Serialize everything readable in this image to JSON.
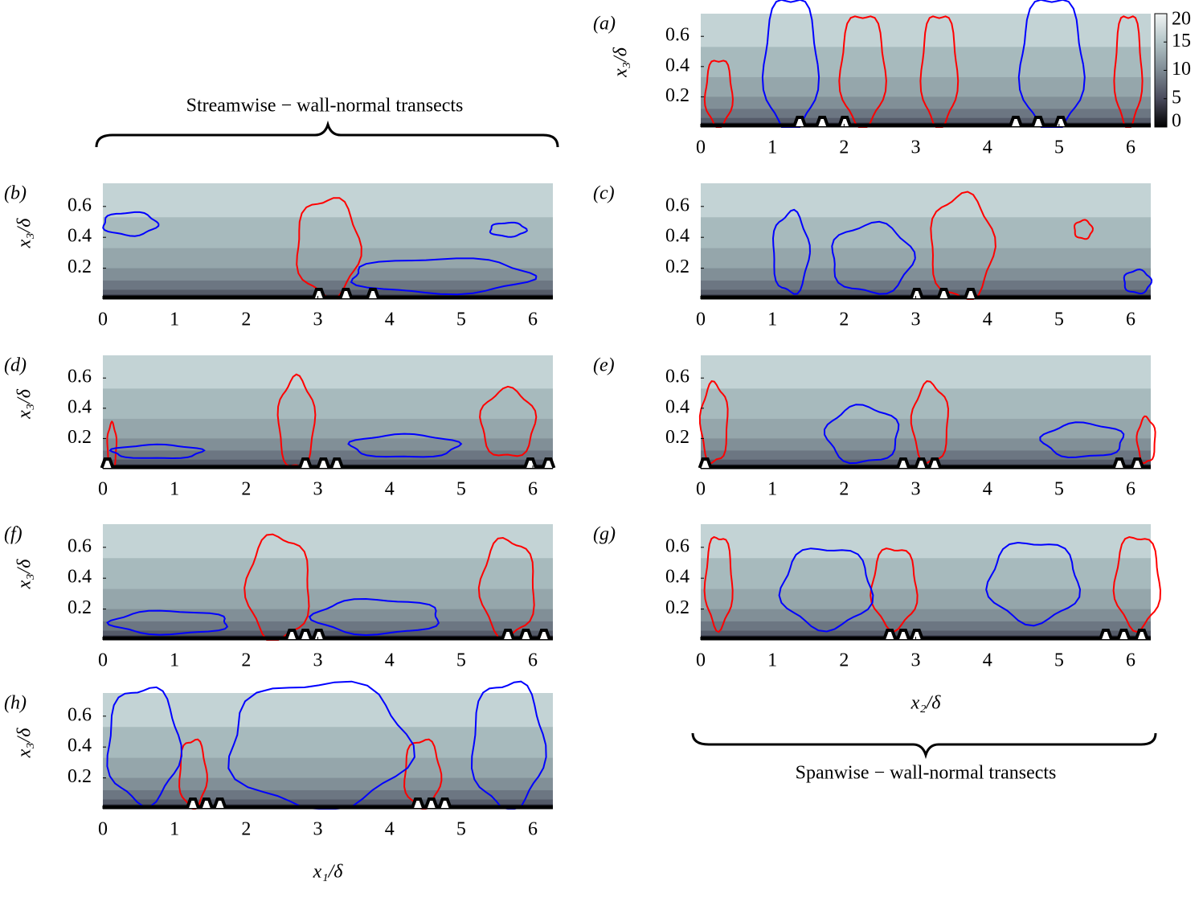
{
  "chart_data": [
    {
      "type": "contour",
      "panel_label": "(a)",
      "xlim": [
        0,
        6.28
      ],
      "ylim": [
        0,
        0.75
      ],
      "xticks": [
        0,
        1,
        2,
        3,
        4,
        5,
        6
      ],
      "yticks": [
        0.2,
        0.4,
        0.6
      ],
      "ylabel": "x₃/δ",
      "colorbar": {
        "lim": [
          0,
          20
        ],
        "ticks": [
          0,
          5,
          10,
          15,
          20
        ]
      }
    },
    {
      "type": "contour",
      "panel_label": "(b)",
      "xlim": [
        0,
        6.28
      ],
      "ylim": [
        0,
        0.75
      ],
      "xticks": [
        0,
        1,
        2,
        3,
        4,
        5,
        6
      ],
      "yticks": [
        0.2,
        0.4,
        0.6
      ],
      "ylabel": "x₃/δ"
    },
    {
      "type": "contour",
      "panel_label": "(c)",
      "xlim": [
        0,
        6.28
      ],
      "ylim": [
        0,
        0.75
      ],
      "xticks": [
        0,
        1,
        2,
        3,
        4,
        5,
        6
      ],
      "yticks": [
        0.2,
        0.4,
        0.6
      ]
    },
    {
      "type": "contour",
      "panel_label": "(d)",
      "xlim": [
        0,
        6.28
      ],
      "ylim": [
        0,
        0.75
      ],
      "xticks": [
        0,
        1,
        2,
        3,
        4,
        5,
        6
      ],
      "yticks": [
        0.2,
        0.4,
        0.6
      ],
      "ylabel": "x₃/δ"
    },
    {
      "type": "contour",
      "panel_label": "(e)",
      "xlim": [
        0,
        6.28
      ],
      "ylim": [
        0,
        0.75
      ],
      "xticks": [
        0,
        1,
        2,
        3,
        4,
        5,
        6
      ],
      "yticks": [
        0.2,
        0.4,
        0.6
      ]
    },
    {
      "type": "contour",
      "panel_label": "(f)",
      "xlim": [
        0,
        6.28
      ],
      "ylim": [
        0,
        0.75
      ],
      "xticks": [
        0,
        1,
        2,
        3,
        4,
        5,
        6
      ],
      "yticks": [
        0.2,
        0.4,
        0.6
      ],
      "ylabel": "x₃/δ"
    },
    {
      "type": "contour",
      "panel_label": "(g)",
      "xlim": [
        0,
        6.28
      ],
      "ylim": [
        0,
        0.75
      ],
      "xticks": [
        0,
        1,
        2,
        3,
        4,
        5,
        6
      ],
      "yticks": [
        0.2,
        0.4,
        0.6
      ],
      "xlabel": "x₂/δ"
    },
    {
      "type": "contour",
      "panel_label": "(h)",
      "xlim": [
        0,
        6.28
      ],
      "ylim": [
        0,
        0.75
      ],
      "xticks": [
        0,
        1,
        2,
        3,
        4,
        5,
        6
      ],
      "yticks": [
        0.2,
        0.4,
        0.6
      ],
      "ylabel": "x₃/δ",
      "xlabel": "x₁/δ"
    }
  ],
  "annotations": {
    "streamwise": "Streamwise − wall-normal transects",
    "spanwise": "Spanwise − wall-normal transects"
  }
}
